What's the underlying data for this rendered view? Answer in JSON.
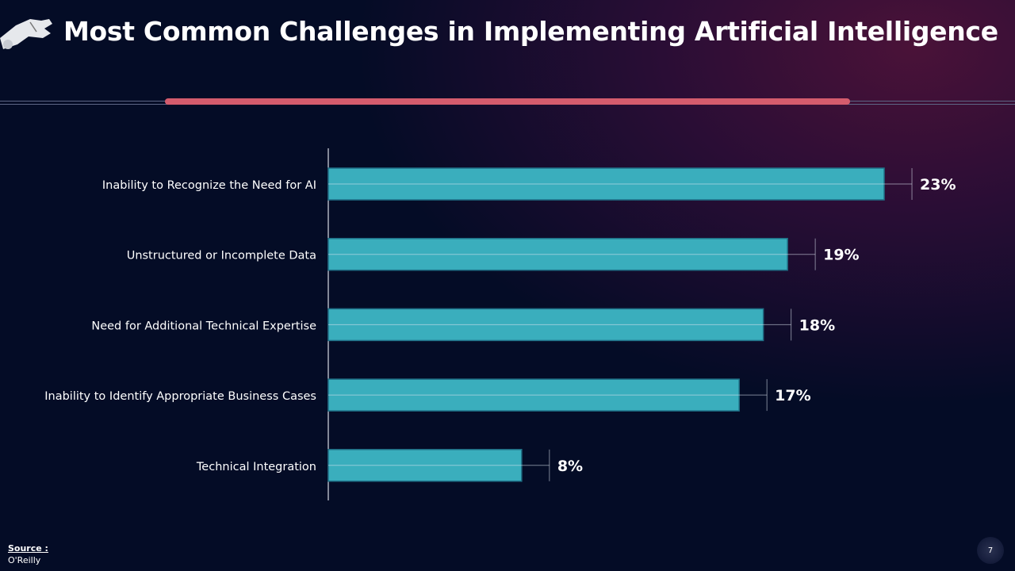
{
  "header": {
    "title": "Most Common Challenges in Implementing Artificial Intelligence"
  },
  "chart_data": {
    "type": "bar",
    "orientation": "horizontal",
    "categories": [
      "Inability to Recognize the Need for AI",
      "Unstructured or Incomplete Data",
      "Need for Additional Technical Expertise",
      "Inability to Identify Appropriate Business Cases",
      "Technical Integration"
    ],
    "values": [
      23,
      19,
      18,
      17,
      8
    ],
    "data_labels": [
      "23%",
      "19%",
      "18%",
      "17%",
      "8%"
    ],
    "unit": "%",
    "bar_color": "#3aaebd",
    "grid": false,
    "legend": "none"
  },
  "footer": {
    "source_label": "Source :",
    "source_value": "O'Reilly",
    "page_number": "7"
  }
}
